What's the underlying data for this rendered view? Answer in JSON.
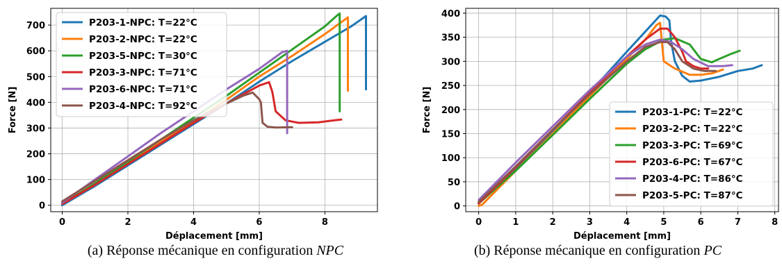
{
  "chart_data": [
    {
      "type": "line",
      "xlabel": "Déplacement [mm]",
      "ylabel": "Force [N]",
      "xlim": [
        -0.35,
        9.6
      ],
      "ylim": [
        -25,
        765
      ],
      "xticks": [
        0,
        2,
        4,
        6,
        8
      ],
      "yticks": [
        0,
        100,
        200,
        300,
        400,
        500,
        600,
        700
      ],
      "grid": true,
      "legend_position": "top-left",
      "caption": {
        "prefix": "(a) Réponse mécanique en configuration ",
        "emphasis": "NPC"
      },
      "series": [
        {
          "name": "P203-1-NPC: T=22°C",
          "color": "#1f77b4",
          "x": [
            0,
            1,
            2,
            3,
            4,
            5,
            6,
            7,
            8,
            8.8,
            9.25,
            9.25
          ],
          "y": [
            0,
            75,
            155,
            235,
            315,
            395,
            480,
            560,
            635,
            695,
            735,
            450
          ]
        },
        {
          "name": "P203-2-NPC: T=22°C",
          "color": "#ff7f0e",
          "x": [
            0,
            1,
            2,
            3,
            4,
            5,
            6,
            7,
            8,
            8.65,
            8.7,
            8.7
          ],
          "y": [
            5,
            80,
            165,
            245,
            325,
            410,
            500,
            580,
            665,
            725,
            730,
            445
          ]
        },
        {
          "name": "P203-5-NPC: T=30°C",
          "color": "#2ca02c",
          "x": [
            0,
            1,
            2,
            3,
            4,
            5,
            6,
            7,
            8,
            8.35,
            8.45,
            8.45
          ],
          "y": [
            5,
            85,
            170,
            255,
            340,
            425,
            515,
            605,
            695,
            735,
            745,
            365
          ]
        },
        {
          "name": "P203-3-NPC: T=71°C",
          "color": "#d62728",
          "x": [
            0,
            1,
            2,
            3,
            4,
            5,
            5.5,
            6,
            6.3,
            6.4,
            6.5,
            6.8,
            7.2,
            7.8,
            8.3,
            8.5
          ],
          "y": [
            5,
            80,
            160,
            240,
            320,
            395,
            430,
            465,
            478,
            440,
            365,
            330,
            320,
            322,
            330,
            333
          ]
        },
        {
          "name": "P203-6-NPC: T=71°C",
          "color": "#9467bd",
          "x": [
            0,
            1,
            2,
            3,
            4,
            5,
            6,
            6.7,
            6.85,
            6.85
          ],
          "y": [
            10,
            100,
            190,
            280,
            365,
            450,
            530,
            595,
            600,
            280
          ]
        },
        {
          "name": "P203-4-NPC: T=92°C",
          "color": "#8c564b",
          "x": [
            0,
            1,
            2,
            3,
            4,
            5,
            5.5,
            5.8,
            6.0,
            6.05,
            6.1,
            6.25,
            6.5,
            7.0
          ],
          "y": [
            15,
            95,
            175,
            255,
            330,
            395,
            425,
            438,
            412,
            400,
            320,
            305,
            302,
            303
          ]
        }
      ]
    },
    {
      "type": "line",
      "xlabel": "Déplacement [mm]",
      "ylabel": "Force [N]",
      "xlim": [
        -0.35,
        8.1
      ],
      "ylim": [
        -12,
        410
      ],
      "xticks": [
        0,
        1,
        2,
        3,
        4,
        5,
        6,
        7,
        8
      ],
      "yticks": [
        0,
        50,
        100,
        150,
        200,
        250,
        300,
        350,
        400
      ],
      "grid": true,
      "legend_position": "bottom-right",
      "caption": {
        "prefix": "(b) Réponse mécanique en configuration ",
        "emphasis": "PC"
      },
      "series": [
        {
          "name": "P203-1-PC: T=22°C",
          "color": "#1f77b4",
          "x": [
            0,
            1,
            2,
            3,
            4,
            4.6,
            4.9,
            5.05,
            5.15,
            5.2,
            5.3,
            5.5,
            5.7,
            6.0,
            6.5,
            7.0,
            7.4,
            7.65
          ],
          "y": [
            5,
            78,
            155,
            235,
            320,
            370,
            395,
            393,
            385,
            340,
            300,
            270,
            258,
            260,
            268,
            280,
            285,
            292
          ]
        },
        {
          "name": "P203-2-PC: T=22°C",
          "color": "#ff7f0e",
          "x": [
            0,
            0.1,
            1,
            2,
            3,
            4,
            4.5,
            4.8,
            4.9,
            4.95,
            5.0,
            5.3,
            5.7,
            6.0,
            6.3,
            6.6
          ],
          "y": [
            0,
            3,
            73,
            150,
            228,
            305,
            345,
            375,
            380,
            340,
            300,
            285,
            272,
            272,
            275,
            283
          ]
        },
        {
          "name": "P203-3-PC: T=69°C",
          "color": "#2ca02c",
          "x": [
            0,
            1,
            2,
            3,
            4,
            4.5,
            5.0,
            5.3,
            5.7,
            6.0,
            6.3,
            6.5,
            6.8,
            7.05
          ],
          "y": [
            5,
            73,
            147,
            222,
            295,
            325,
            345,
            348,
            335,
            305,
            298,
            305,
            315,
            322
          ]
        },
        {
          "name": "P203-6-PC: T=67°C",
          "color": "#d62728",
          "x": [
            0,
            1,
            2,
            3,
            4,
            4.5,
            4.9,
            5.1,
            5.3,
            5.5,
            5.6,
            5.8,
            6.0,
            6.2
          ],
          "y": [
            5,
            80,
            158,
            235,
            310,
            345,
            368,
            368,
            350,
            320,
            300,
            290,
            285,
            285
          ]
        },
        {
          "name": "P203-4-PC: T=86°C",
          "color": "#9467bd",
          "x": [
            0,
            1,
            2,
            3,
            4,
            4.5,
            4.9,
            5.2,
            5.5,
            5.8,
            6.2,
            6.6,
            6.85
          ],
          "y": [
            12,
            90,
            165,
            240,
            310,
            335,
            345,
            340,
            325,
            305,
            290,
            290,
            292
          ]
        },
        {
          "name": "P203-5-PC: T=87°C",
          "color": "#8c564b",
          "x": [
            0,
            1,
            2,
            3,
            4,
            4.5,
            4.9,
            5.1,
            5.3,
            5.5,
            5.8,
            6.1,
            6.4
          ],
          "y": [
            8,
            82,
            158,
            232,
            300,
            330,
            340,
            340,
            325,
            300,
            285,
            280,
            280
          ]
        }
      ]
    }
  ]
}
